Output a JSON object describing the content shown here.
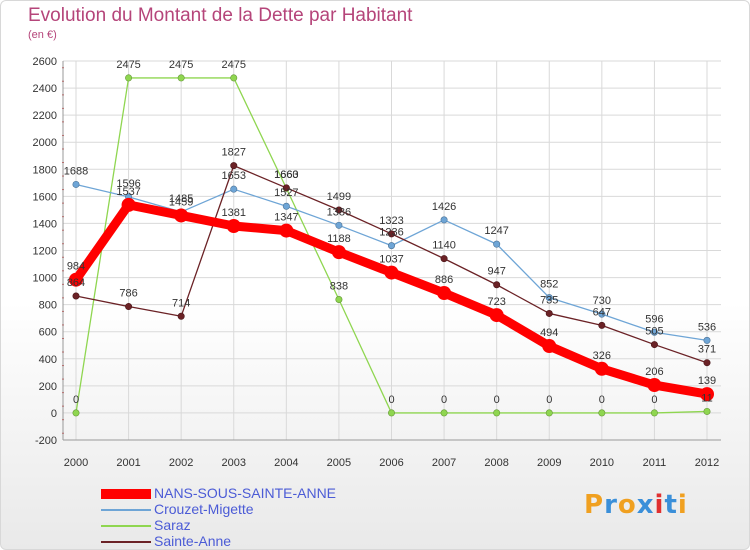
{
  "header": {
    "title": "Evolution du Montant de la Dette par Habitant",
    "subtitle": "(en €)"
  },
  "chart_data": {
    "type": "line",
    "title": "Evolution du Montant de la Dette par Habitant",
    "ylabel": "(en €)",
    "xlabel": "",
    "ylim": [
      -200,
      2600
    ],
    "yticks": [
      "-200",
      "0",
      "200",
      "400",
      "600",
      "800",
      "1000",
      "1200",
      "1400",
      "1600",
      "1800",
      "2000",
      "2200",
      "2400",
      "2600"
    ],
    "categories": [
      "2000",
      "2001",
      "2002",
      "2003",
      "2004",
      "2005",
      "2006",
      "2007",
      "2008",
      "2009",
      "2010",
      "2011",
      "2012"
    ],
    "grid": true,
    "series": [
      {
        "name": "NANS-SOUS-SAINTE-ANNE",
        "color": "#ff0000",
        "values": [
          984,
          1537,
          1459,
          1381,
          1347,
          1188,
          1037,
          886,
          723,
          494,
          326,
          206,
          139
        ]
      },
      {
        "name": "Crouzet-Migette",
        "color": "#6ea5d6",
        "values": [
          1688,
          1596,
          1485,
          1653,
          1527,
          1386,
          1236,
          1426,
          1247,
          852,
          730,
          596,
          536
        ]
      },
      {
        "name": "Saraz",
        "color": "#8fd650",
        "values": [
          0,
          2475,
          2475,
          2475,
          1660,
          838,
          0,
          0,
          0,
          0,
          0,
          0,
          11
        ]
      },
      {
        "name": "Sainte-Anne",
        "color": "#6b2226",
        "values": [
          864,
          786,
          714,
          1827,
          1663,
          1499,
          1323,
          1140,
          947,
          735,
          647,
          505,
          371
        ]
      }
    ]
  },
  "legend": {
    "items": [
      {
        "label": "NANS-SOUS-SAINTE-ANNE",
        "color": "#ff0000"
      },
      {
        "label": "Crouzet-Migette",
        "color": "#6ea5d6"
      },
      {
        "label": "Saraz",
        "color": "#8fd650"
      },
      {
        "label": "Sainte-Anne",
        "color": "#6b2226"
      }
    ]
  },
  "logo": {
    "letters": [
      "P",
      "r",
      "o",
      "x",
      "i",
      "t",
      "i"
    ],
    "colors": [
      "#f0a020",
      "#3a8fd9",
      "#f0a020",
      "#3a8fd9",
      "#e03030",
      "#3a8fd9",
      "#f0a020"
    ]
  }
}
